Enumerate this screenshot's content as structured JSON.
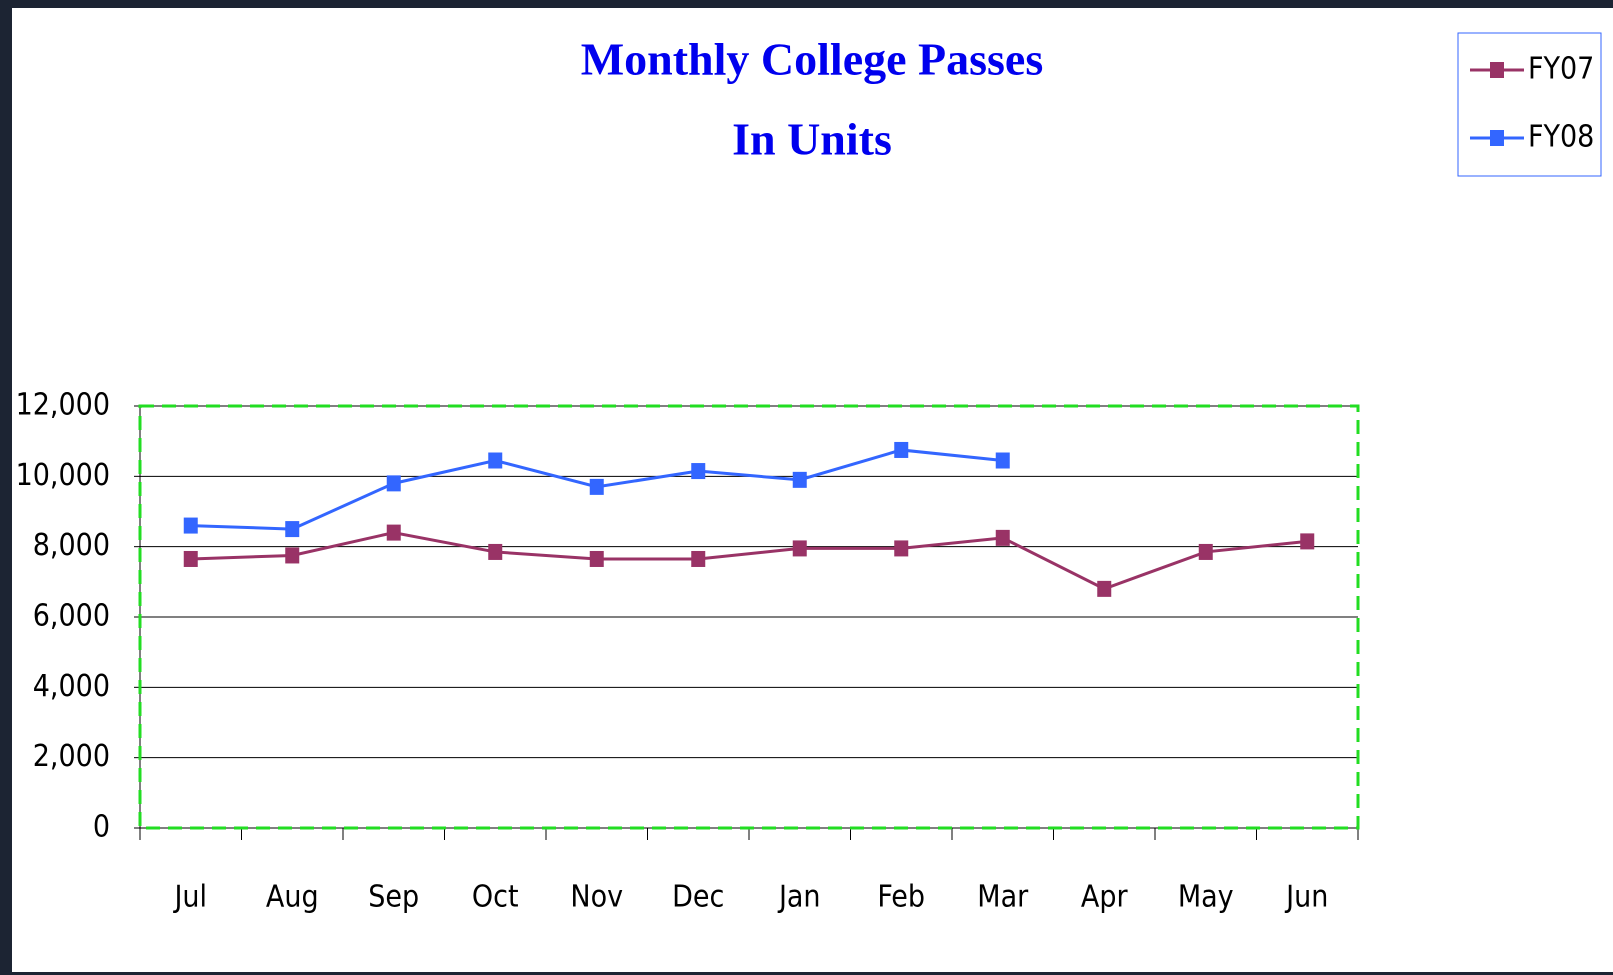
{
  "chart_data": {
    "type": "line",
    "title": "Monthly College Passes",
    "subtitle": "In Units",
    "categories": [
      "Jul",
      "Aug",
      "Sep",
      "Oct",
      "Nov",
      "Dec",
      "Jan",
      "Feb",
      "Mar",
      "Apr",
      "May",
      "Jun"
    ],
    "series": [
      {
        "name": "FY07",
        "color": "#993366",
        "values": [
          7650,
          7750,
          8400,
          7850,
          7650,
          7650,
          7950,
          7950,
          8250,
          6800,
          7850,
          8150
        ]
      },
      {
        "name": "FY08",
        "color": "#3366ff",
        "values": [
          8600,
          8500,
          9800,
          10450,
          9700,
          10150,
          9900,
          10750,
          10450,
          null,
          null,
          null
        ]
      }
    ],
    "ylim": [
      0,
      12000
    ],
    "yticks": [
      0,
      {
        "value": 2000,
        "label": "2,000"
      },
      {
        "value": 4000,
        "label": "4,000"
      },
      {
        "value": 6000,
        "label": "6,000"
      },
      {
        "value": 8000,
        "label": "8,000"
      },
      {
        "value": 10000,
        "label": "10,000"
      },
      {
        "value": 12000,
        "label": "12,000"
      }
    ],
    "grid": true,
    "legend": "top-right"
  }
}
